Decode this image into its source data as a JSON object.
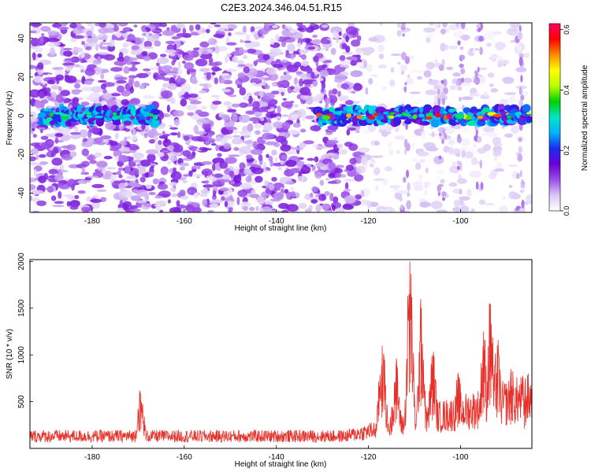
{
  "title": "C2E3.2024.346.04.51.R15",
  "chart_data": [
    {
      "type": "heatmap",
      "xlabel": "Height of straight line (km)",
      "ylabel": "Frequency (Hz)",
      "xlim": [
        -193.5,
        -84.5
      ],
      "ylim": [
        -50,
        48
      ],
      "xticks": [
        -180,
        -160,
        -140,
        -120,
        -100
      ],
      "yticks": [
        -40,
        -20,
        0,
        20,
        40
      ],
      "colorbar": {
        "label": "Normalized spectral amplitude",
        "range": [
          0,
          0.62
        ],
        "ticks": [
          0.0,
          0.2,
          0.4,
          0.6
        ],
        "tick_labels": [
          "0.0",
          "0.2",
          "0.4",
          "0.6"
        ],
        "colors": [
          "#ffffff",
          "#d9c7f5",
          "#9b4de8",
          "#6a00d8",
          "#1a2cf0",
          "#00b4ff",
          "#00e6c8",
          "#00d000",
          "#b8ff00",
          "#ffff00",
          "#ff8c00",
          "#ff0000",
          "#ff0060"
        ]
      },
      "peak_band": {
        "center_hz": 0,
        "segments": [
          {
            "x_range": [
              -191,
              -166
            ],
            "peak_amplitude": 0.35
          },
          {
            "x_range": [
              -131,
              -85
            ],
            "peak_amplitude": 0.62
          }
        ]
      },
      "noise_level": {
        "left_of_km": -122,
        "amplitude": 0.12,
        "right_amplitude": 0.05
      },
      "grid": false
    },
    {
      "type": "line",
      "xlabel": "Height of straight line (km)",
      "ylabel": "SNR (10 * v/v)",
      "xlim": [
        -193.5,
        -84.5
      ],
      "ylim": [
        0,
        2020
      ],
      "xticks": [
        -180,
        -160,
        -140,
        -120,
        -100
      ],
      "yticks": [
        500,
        1000,
        1500,
        2000
      ],
      "color": "#e8302a",
      "baseline": 180,
      "peaks": [
        {
          "x": -169.5,
          "y": 590
        },
        {
          "x": -117.0,
          "y": 1100
        },
        {
          "x": -114.0,
          "y": 900
        },
        {
          "x": -111.0,
          "y": 2000
        },
        {
          "x": -108.5,
          "y": 1500
        },
        {
          "x": -106.0,
          "y": 1000
        },
        {
          "x": -100.5,
          "y": 750
        },
        {
          "x": -95.0,
          "y": 1250
        },
        {
          "x": -93.5,
          "y": 1540
        },
        {
          "x": -92.0,
          "y": 1100
        },
        {
          "x": -89.0,
          "y": 850
        },
        {
          "x": -86.0,
          "y": 700
        }
      ],
      "grid": false
    }
  ]
}
